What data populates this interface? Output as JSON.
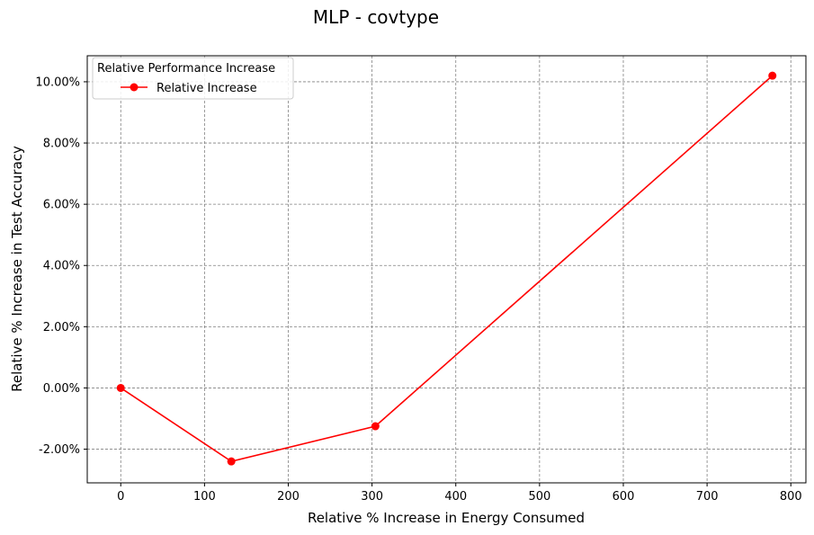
{
  "chart_data": {
    "type": "line",
    "title": "MLP - covtype",
    "xlabel": "Relative % Increase in Energy Consumed",
    "ylabel": "Relative % Increase in Test Accuracy",
    "xlim": [
      -40,
      818
    ],
    "ylim": [
      -3.1,
      10.85
    ],
    "x_ticks": [
      0,
      100,
      200,
      300,
      400,
      500,
      600,
      700,
      800
    ],
    "x_tick_labels": [
      "0",
      "100",
      "200",
      "300",
      "400",
      "500",
      "600",
      "700",
      "800"
    ],
    "y_ticks": [
      -2,
      0,
      2,
      4,
      6,
      8,
      10
    ],
    "y_tick_labels": [
      "-2.00%",
      "0.00%",
      "2.00%",
      "4.00%",
      "6.00%",
      "8.00%",
      "10.00%"
    ],
    "grid": true,
    "legend": {
      "title": "Relative Performance Increase",
      "placement": "top-left"
    },
    "series": [
      {
        "name": "Relative Increase",
        "color": "#ff0000",
        "marker": "circle",
        "x": [
          0,
          132,
          304,
          778
        ],
        "y": [
          0.0,
          -2.4,
          -1.25,
          10.2
        ]
      }
    ]
  }
}
